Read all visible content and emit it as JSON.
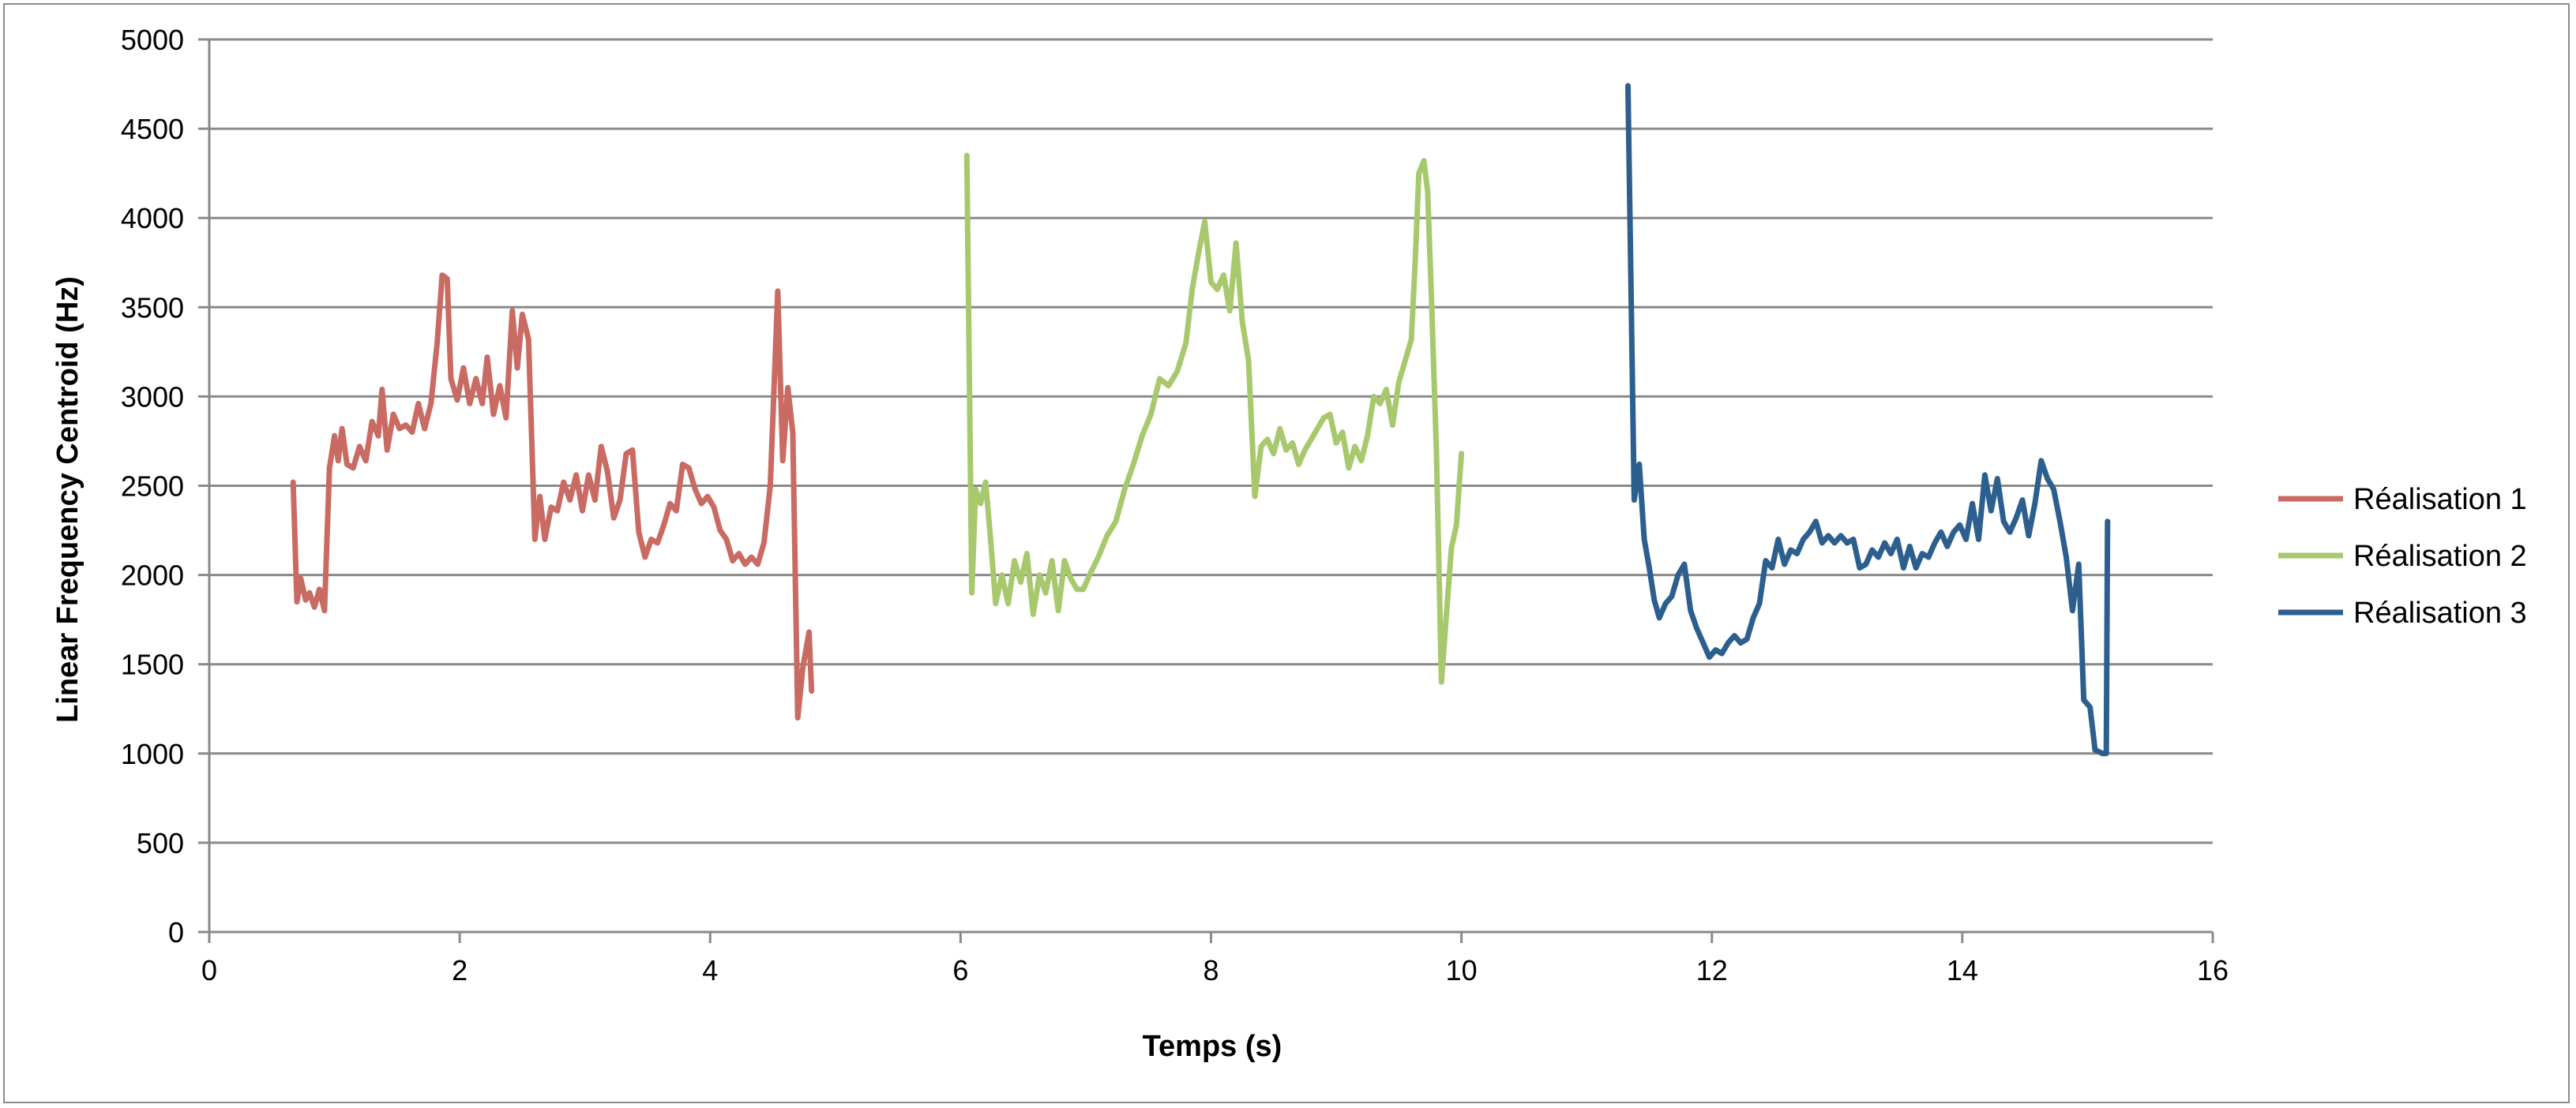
{
  "chart_data": {
    "type": "line",
    "xlabel": "Temps (s)",
    "ylabel": "Linear Frequency Centroid (Hz)",
    "xlim": [
      0,
      16
    ],
    "ylim": [
      0,
      5000
    ],
    "xticks": [
      0,
      2,
      4,
      6,
      8,
      10,
      12,
      14,
      16
    ],
    "yticks": [
      0,
      500,
      1000,
      1500,
      2000,
      2500,
      3000,
      3500,
      4000,
      4500,
      5000
    ],
    "grid": "horizontal",
    "legend_position": "right",
    "series": [
      {
        "name": "Réalisation 1",
        "color": "#c96a63",
        "points": [
          [
            0.67,
            2520
          ],
          [
            0.7,
            1850
          ],
          [
            0.73,
            1980
          ],
          [
            0.77,
            1860
          ],
          [
            0.8,
            1900
          ],
          [
            0.84,
            1820
          ],
          [
            0.88,
            1920
          ],
          [
            0.92,
            1800
          ],
          [
            0.96,
            2600
          ],
          [
            1.0,
            2780
          ],
          [
            1.03,
            2640
          ],
          [
            1.06,
            2820
          ],
          [
            1.1,
            2620
          ],
          [
            1.15,
            2600
          ],
          [
            1.2,
            2720
          ],
          [
            1.25,
            2640
          ],
          [
            1.3,
            2860
          ],
          [
            1.35,
            2780
          ],
          [
            1.38,
            3040
          ],
          [
            1.42,
            2700
          ],
          [
            1.47,
            2900
          ],
          [
            1.52,
            2820
          ],
          [
            1.57,
            2840
          ],
          [
            1.62,
            2800
          ],
          [
            1.67,
            2960
          ],
          [
            1.72,
            2820
          ],
          [
            1.77,
            2960
          ],
          [
            1.82,
            3300
          ],
          [
            1.86,
            3680
          ],
          [
            1.9,
            3660
          ],
          [
            1.93,
            3100
          ],
          [
            1.98,
            2980
          ],
          [
            2.03,
            3160
          ],
          [
            2.08,
            2960
          ],
          [
            2.13,
            3100
          ],
          [
            2.18,
            2960
          ],
          [
            2.22,
            3220
          ],
          [
            2.27,
            2900
          ],
          [
            2.32,
            3060
          ],
          [
            2.37,
            2880
          ],
          [
            2.42,
            3480
          ],
          [
            2.46,
            3160
          ],
          [
            2.5,
            3460
          ],
          [
            2.55,
            3320
          ],
          [
            2.6,
            2200
          ],
          [
            2.64,
            2440
          ],
          [
            2.68,
            2200
          ],
          [
            2.73,
            2380
          ],
          [
            2.78,
            2360
          ],
          [
            2.83,
            2520
          ],
          [
            2.88,
            2420
          ],
          [
            2.93,
            2560
          ],
          [
            2.98,
            2360
          ],
          [
            3.03,
            2560
          ],
          [
            3.08,
            2420
          ],
          [
            3.13,
            2720
          ],
          [
            3.18,
            2580
          ],
          [
            3.23,
            2320
          ],
          [
            3.28,
            2420
          ],
          [
            3.33,
            2680
          ],
          [
            3.38,
            2700
          ],
          [
            3.43,
            2240
          ],
          [
            3.48,
            2100
          ],
          [
            3.53,
            2200
          ],
          [
            3.58,
            2180
          ],
          [
            3.63,
            2280
          ],
          [
            3.68,
            2400
          ],
          [
            3.73,
            2360
          ],
          [
            3.78,
            2620
          ],
          [
            3.83,
            2600
          ],
          [
            3.88,
            2480
          ],
          [
            3.93,
            2400
          ],
          [
            3.98,
            2440
          ],
          [
            4.03,
            2380
          ],
          [
            4.08,
            2250
          ],
          [
            4.13,
            2200
          ],
          [
            4.18,
            2080
          ],
          [
            4.23,
            2120
          ],
          [
            4.28,
            2060
          ],
          [
            4.33,
            2100
          ],
          [
            4.38,
            2060
          ],
          [
            4.43,
            2180
          ],
          [
            4.48,
            2500
          ],
          [
            4.54,
            3590
          ],
          [
            4.58,
            2640
          ],
          [
            4.62,
            3050
          ],
          [
            4.66,
            2800
          ],
          [
            4.7,
            1200
          ],
          [
            4.74,
            1480
          ],
          [
            4.79,
            1680
          ],
          [
            4.81,
            1350
          ]
        ]
      },
      {
        "name": "Réalisation 2",
        "color": "#a8c86e",
        "points": [
          [
            6.05,
            4350
          ],
          [
            6.09,
            1900
          ],
          [
            6.12,
            2480
          ],
          [
            6.16,
            2400
          ],
          [
            6.2,
            2520
          ],
          [
            6.24,
            2200
          ],
          [
            6.28,
            1840
          ],
          [
            6.33,
            2000
          ],
          [
            6.38,
            1840
          ],
          [
            6.43,
            2080
          ],
          [
            6.48,
            1960
          ],
          [
            6.53,
            2120
          ],
          [
            6.58,
            1780
          ],
          [
            6.63,
            2000
          ],
          [
            6.68,
            1900
          ],
          [
            6.73,
            2080
          ],
          [
            6.78,
            1800
          ],
          [
            6.83,
            2080
          ],
          [
            6.88,
            1980
          ],
          [
            6.93,
            1920
          ],
          [
            6.98,
            1920
          ],
          [
            7.03,
            2000
          ],
          [
            7.1,
            2100
          ],
          [
            7.17,
            2220
          ],
          [
            7.24,
            2300
          ],
          [
            7.31,
            2480
          ],
          [
            7.38,
            2620
          ],
          [
            7.45,
            2780
          ],
          [
            7.52,
            2900
          ],
          [
            7.59,
            3100
          ],
          [
            7.66,
            3060
          ],
          [
            7.73,
            3140
          ],
          [
            7.8,
            3300
          ],
          [
            7.85,
            3600
          ],
          [
            7.9,
            3800
          ],
          [
            7.95,
            3980
          ],
          [
            8.0,
            3640
          ],
          [
            8.05,
            3600
          ],
          [
            8.1,
            3680
          ],
          [
            8.15,
            3480
          ],
          [
            8.2,
            3860
          ],
          [
            8.25,
            3420
          ],
          [
            8.3,
            3200
          ],
          [
            8.35,
            2440
          ],
          [
            8.4,
            2720
          ],
          [
            8.45,
            2760
          ],
          [
            8.5,
            2680
          ],
          [
            8.55,
            2820
          ],
          [
            8.6,
            2700
          ],
          [
            8.65,
            2740
          ],
          [
            8.7,
            2620
          ],
          [
            8.75,
            2700
          ],
          [
            8.8,
            2760
          ],
          [
            8.85,
            2820
          ],
          [
            8.9,
            2880
          ],
          [
            8.95,
            2900
          ],
          [
            9.0,
            2740
          ],
          [
            9.05,
            2800
          ],
          [
            9.1,
            2600
          ],
          [
            9.15,
            2720
          ],
          [
            9.2,
            2640
          ],
          [
            9.25,
            2780
          ],
          [
            9.3,
            3000
          ],
          [
            9.35,
            2960
          ],
          [
            9.4,
            3040
          ],
          [
            9.45,
            2840
          ],
          [
            9.5,
            3080
          ],
          [
            9.55,
            3200
          ],
          [
            9.6,
            3320
          ],
          [
            9.63,
            3750
          ],
          [
            9.66,
            4250
          ],
          [
            9.7,
            4320
          ],
          [
            9.73,
            4150
          ],
          [
            9.76,
            3560
          ],
          [
            9.8,
            2700
          ],
          [
            9.84,
            1400
          ],
          [
            9.88,
            1780
          ],
          [
            9.92,
            2150
          ],
          [
            9.96,
            2280
          ],
          [
            10.0,
            2680
          ]
        ]
      },
      {
        "name": "Réalisation 3",
        "color": "#2d5f8e",
        "points": [
          [
            11.33,
            4740
          ],
          [
            11.38,
            2420
          ],
          [
            11.42,
            2620
          ],
          [
            11.46,
            2200
          ],
          [
            11.5,
            2040
          ],
          [
            11.54,
            1860
          ],
          [
            11.58,
            1760
          ],
          [
            11.63,
            1840
          ],
          [
            11.68,
            1880
          ],
          [
            11.73,
            2000
          ],
          [
            11.78,
            2060
          ],
          [
            11.83,
            1800
          ],
          [
            11.88,
            1700
          ],
          [
            11.93,
            1620
          ],
          [
            11.98,
            1540
          ],
          [
            12.03,
            1580
          ],
          [
            12.08,
            1560
          ],
          [
            12.13,
            1620
          ],
          [
            12.18,
            1660
          ],
          [
            12.23,
            1620
          ],
          [
            12.28,
            1640
          ],
          [
            12.33,
            1760
          ],
          [
            12.38,
            1840
          ],
          [
            12.43,
            2080
          ],
          [
            12.48,
            2040
          ],
          [
            12.53,
            2200
          ],
          [
            12.58,
            2060
          ],
          [
            12.63,
            2140
          ],
          [
            12.68,
            2120
          ],
          [
            12.73,
            2200
          ],
          [
            12.78,
            2240
          ],
          [
            12.83,
            2300
          ],
          [
            12.88,
            2180
          ],
          [
            12.93,
            2220
          ],
          [
            12.98,
            2180
          ],
          [
            13.03,
            2220
          ],
          [
            13.08,
            2180
          ],
          [
            13.13,
            2200
          ],
          [
            13.18,
            2040
          ],
          [
            13.23,
            2060
          ],
          [
            13.28,
            2140
          ],
          [
            13.33,
            2100
          ],
          [
            13.38,
            2180
          ],
          [
            13.43,
            2120
          ],
          [
            13.48,
            2200
          ],
          [
            13.53,
            2040
          ],
          [
            13.58,
            2160
          ],
          [
            13.63,
            2040
          ],
          [
            13.68,
            2120
          ],
          [
            13.73,
            2100
          ],
          [
            13.78,
            2180
          ],
          [
            13.83,
            2240
          ],
          [
            13.88,
            2160
          ],
          [
            13.93,
            2240
          ],
          [
            13.98,
            2280
          ],
          [
            14.03,
            2200
          ],
          [
            14.08,
            2400
          ],
          [
            14.13,
            2200
          ],
          [
            14.18,
            2560
          ],
          [
            14.23,
            2360
          ],
          [
            14.28,
            2540
          ],
          [
            14.33,
            2300
          ],
          [
            14.38,
            2240
          ],
          [
            14.43,
            2320
          ],
          [
            14.48,
            2420
          ],
          [
            14.53,
            2220
          ],
          [
            14.58,
            2400
          ],
          [
            14.63,
            2640
          ],
          [
            14.68,
            2540
          ],
          [
            14.73,
            2480
          ],
          [
            14.78,
            2300
          ],
          [
            14.83,
            2100
          ],
          [
            14.88,
            1800
          ],
          [
            14.93,
            2060
          ],
          [
            14.97,
            1300
          ],
          [
            15.02,
            1260
          ],
          [
            15.06,
            1020
          ],
          [
            15.12,
            1000
          ],
          [
            15.15,
            1000
          ],
          [
            15.16,
            2300
          ]
        ]
      }
    ]
  }
}
